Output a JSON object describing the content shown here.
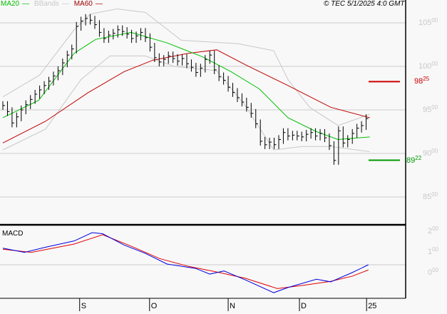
{
  "legend": {
    "ma20": "MA20",
    "bbands": "BBands",
    "ma60": "MA60"
  },
  "copyright": "© TEC 5/1/2025 4:0 GMT",
  "macd_label": "MACD",
  "colors": {
    "ma20": "#00c000",
    "ma60": "#c00000",
    "bbands": "#c8c8c8",
    "macd": "#0000e0",
    "signal": "#e00000",
    "bars": "#000000"
  },
  "chart_data": [
    {
      "type": "ohlc",
      "title": "",
      "ylim": [
        84,
        106.5
      ],
      "y_ticks": [
        {
          "v": 105,
          "int": "105",
          "dec": "00"
        },
        {
          "v": 100,
          "int": "100",
          "dec": "00"
        },
        {
          "v": 95,
          "int": "95",
          "dec": "00"
        },
        {
          "v": 90,
          "int": "90",
          "dec": "00"
        },
        {
          "v": 85,
          "int": "85",
          "dec": "00"
        }
      ],
      "x_ticks": [
        {
          "i": 16.7,
          "label": "S"
        },
        {
          "i": 31.9,
          "label": "O"
        },
        {
          "i": 49,
          "label": "N"
        },
        {
          "i": 64.5,
          "label": "D"
        },
        {
          "i": 79.1,
          "label": "25"
        }
      ],
      "closes": [
        95.5,
        94.8,
        93.5,
        94.2,
        95.0,
        95.6,
        96.2,
        96.8,
        97.3,
        97.8,
        98.3,
        98.9,
        99.5,
        100.4,
        101.3,
        102.0,
        104.6,
        105.2,
        105.5,
        105.3,
        104.8,
        103.9,
        103.2,
        103.6,
        103.8,
        104.2,
        104.0,
        103.7,
        103.2,
        103.5,
        103.9,
        103.3,
        102.2,
        101.0,
        100.5,
        100.8,
        101.2,
        100.9,
        100.6,
        100.9,
        100.3,
        99.9,
        99.3,
        99.8,
        100.8,
        101.3,
        99.6,
        98.8,
        98.4,
        97.6,
        97.0,
        96.4,
        95.9,
        95.3,
        94.6,
        93.4,
        91.4,
        91.0,
        91.3,
        91.0,
        91.6,
        92.4,
        92.0,
        92.1,
        92.0,
        91.9,
        92.2,
        92.4,
        92.0,
        92.3,
        91.8,
        90.9,
        89.2,
        92.6,
        91.2,
        91.6,
        92.3,
        92.9,
        93.2,
        94.0
      ],
      "ma20": [
        [
          0,
          94.1
        ],
        [
          7.8,
          96.1
        ],
        [
          15.5,
          101.5
        ],
        [
          20.2,
          103.1
        ],
        [
          27.9,
          103.9
        ],
        [
          35.7,
          102.7
        ],
        [
          43.4,
          101.1
        ],
        [
          49.6,
          99.4
        ],
        [
          55.8,
          97.4
        ],
        [
          62,
          94.1
        ],
        [
          68.2,
          92.5
        ],
        [
          72.9,
          91.6
        ],
        [
          79.8,
          91.9
        ]
      ],
      "ma60": [
        [
          0,
          91.2
        ],
        [
          9.3,
          93.7
        ],
        [
          18.6,
          97.0
        ],
        [
          26.4,
          99.4
        ],
        [
          32.6,
          100.7
        ],
        [
          40.3,
          101.5
        ],
        [
          46.5,
          101.9
        ],
        [
          52.7,
          100.2
        ],
        [
          62,
          97.8
        ],
        [
          71.3,
          95.3
        ],
        [
          79.8,
          94.1
        ]
      ],
      "bb_upper": [
        [
          0,
          96.5
        ],
        [
          8,
          99
        ],
        [
          15.5,
          104.2
        ],
        [
          19,
          106
        ],
        [
          24.8,
          106.6
        ],
        [
          31,
          106.2
        ],
        [
          38.8,
          103
        ],
        [
          51.2,
          102.6
        ],
        [
          58.9,
          101.8
        ],
        [
          62,
          98.5
        ],
        [
          66.7,
          95.3
        ],
        [
          72.9,
          93.2
        ],
        [
          79.8,
          94.5
        ]
      ],
      "bb_lower": [
        [
          0,
          90.4
        ],
        [
          9.3,
          92.8
        ],
        [
          17,
          98.5
        ],
        [
          23.3,
          101.2
        ],
        [
          31,
          101.2
        ],
        [
          37.2,
          100
        ],
        [
          46.5,
          99.5
        ],
        [
          52.7,
          95.5
        ],
        [
          58.9,
          90.4
        ],
        [
          65.1,
          90.8
        ],
        [
          71.3,
          90.8
        ],
        [
          79.8,
          90.2
        ]
      ],
      "markers": [
        {
          "value": 98.25,
          "label": "98.25",
          "color": "#cc0000"
        },
        {
          "value": 89.22,
          "label": "89.22",
          "color": "#009900"
        }
      ]
    },
    {
      "type": "line",
      "title": "MACD",
      "ylim": [
        -3.3,
        3.3
      ],
      "y_ticks": [
        {
          "v": 2,
          "int": "2",
          "dec": "00"
        },
        {
          "v": 1,
          "int": "1",
          "dec": "00"
        },
        {
          "v": 0,
          "int": "0",
          "dec": "00"
        }
      ],
      "macd": [
        [
          0,
          1.6
        ],
        [
          4.7,
          1.2
        ],
        [
          9.3,
          1.7
        ],
        [
          15.5,
          2.3
        ],
        [
          19.4,
          3.1
        ],
        [
          21.7,
          3.0
        ],
        [
          26.4,
          1.9
        ],
        [
          31,
          1.1
        ],
        [
          35.7,
          0.07
        ],
        [
          41.9,
          -0.35
        ],
        [
          45,
          -0.9
        ],
        [
          48.1,
          -0.6
        ],
        [
          52.7,
          -1.45
        ],
        [
          58.9,
          -2.7
        ],
        [
          62,
          -2.2
        ],
        [
          68.2,
          -1.4
        ],
        [
          71.3,
          -1.65
        ],
        [
          76,
          -0.75
        ],
        [
          79.5,
          0
        ]
      ],
      "signal": [
        [
          0,
          1.5
        ],
        [
          6.2,
          1.2
        ],
        [
          15.5,
          2.0
        ],
        [
          21.7,
          2.9
        ],
        [
          27.9,
          1.8
        ],
        [
          34.1,
          0.6
        ],
        [
          40.3,
          -0.15
        ],
        [
          46.5,
          -0.7
        ],
        [
          52.7,
          -1.3
        ],
        [
          59.7,
          -2.3
        ],
        [
          65.1,
          -2.0
        ],
        [
          71.3,
          -1.6
        ],
        [
          76,
          -1.1
        ],
        [
          79.5,
          -0.5
        ]
      ]
    }
  ]
}
